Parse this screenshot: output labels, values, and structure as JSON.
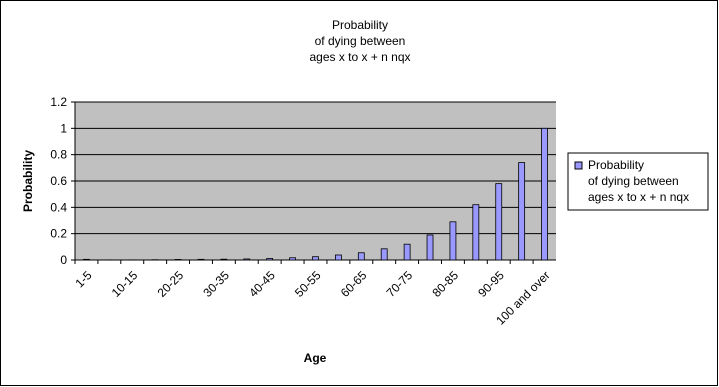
{
  "chart_data": {
    "type": "bar",
    "title": [
      "Probability",
      "of dying between",
      "ages x to x + n nqx"
    ],
    "x_label": "Age",
    "y_label": "Probability",
    "categories": [
      "1-5",
      null,
      "10-15",
      null,
      "20-25",
      null,
      "30-35",
      null,
      "40-45",
      null,
      "50-55",
      null,
      "60-65",
      null,
      "70-75",
      null,
      "80-85",
      null,
      "90-95",
      null,
      "100 and over"
    ],
    "series": [
      {
        "name": [
          "Probability",
          "of dying between",
          "ages x to x + n nqx"
        ],
        "color": "#9999ff",
        "values": [
          0.005,
          0.001,
          0.001,
          0.002,
          0.004,
          0.005,
          0.006,
          0.008,
          0.012,
          0.017,
          0.025,
          0.038,
          0.055,
          0.085,
          0.12,
          0.19,
          0.29,
          0.42,
          0.58,
          0.74,
          1.0
        ]
      }
    ],
    "ylim": [
      0,
      1.2
    ],
    "yticks": [
      0,
      0.2,
      0.4,
      0.6,
      0.8,
      1,
      1.2
    ],
    "grid": true,
    "legend": "right"
  }
}
